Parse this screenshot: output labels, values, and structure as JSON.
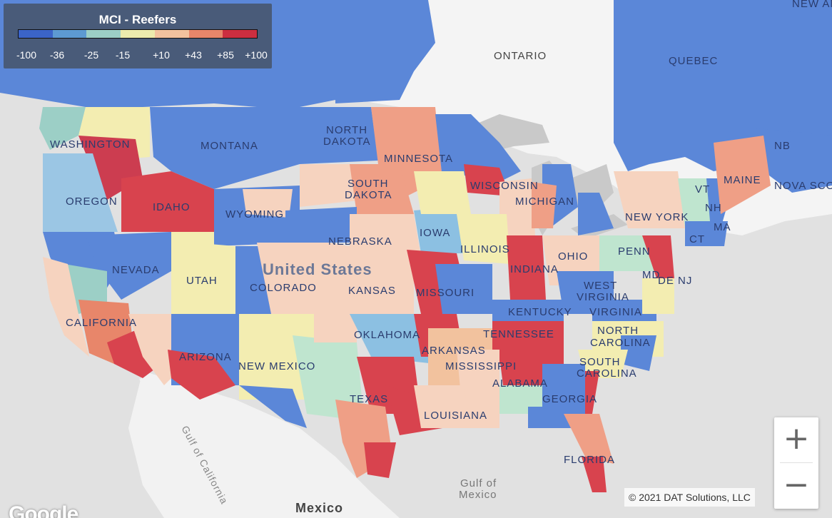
{
  "legend": {
    "title": "MCI - Reefers",
    "ticks": [
      "-100",
      "-36",
      "-25",
      "-15",
      "+10",
      "+43",
      "+85",
      "+100"
    ],
    "colors": [
      "#3b64c8",
      "#5d9ad2",
      "#9ccfc6",
      "#ecebad",
      "#f2c29e",
      "#e8866a",
      "#cc2e40"
    ]
  },
  "labels": {
    "ontario": "ONTARIO",
    "quebec": "QUEBEC",
    "nb": "NB",
    "nova_scotia": "NOVA SCO",
    "new_and": "NEW AND L",
    "north_dakota_1": "NORTH",
    "north_dakota_2": "DAKOTA",
    "south_dakota_1": "SOUTH",
    "south_dakota_2": "DAKOTA",
    "washington": "WASHINGTON",
    "montana": "MONTANA",
    "minnesota": "MINNESOTA",
    "wisconsin": "WISCONSIN",
    "michigan": "MICHIGAN",
    "oregon": "OREGON",
    "idaho": "IDAHO",
    "wyoming": "WYOMING",
    "iowa": "IOWA",
    "nebraska": "NEBRASKA",
    "illinois": "ILLINOIS",
    "indiana": "INDIANA",
    "ohio": "OHIO",
    "penn": "PENN",
    "new_york": "NEW YORK",
    "maine": "MAINE",
    "vt": "VT",
    "nh": "NH",
    "ct": "CT",
    "ma": "MA",
    "nj": "NJ",
    "de": "DE",
    "md": "MD",
    "nevada": "NEVADA",
    "utah": "UTAH",
    "colorado": "COLORADO",
    "united_states": "United States",
    "kansas": "KANSAS",
    "missouri": "MISSOURI",
    "west_virginia_1": "WEST",
    "west_virginia_2": "VIRGINIA",
    "virginia": "VIRGINIA",
    "kentucky": "KENTUCKY",
    "california": "CALIFORNIA",
    "oklahoma": "OKLAHOMA",
    "tennessee": "TENNESSEE",
    "north_carolina_1": "NORTH",
    "north_carolina_2": "CAROLINA",
    "south_carolina_1": "SOUTH",
    "south_carolina_2": "CAROLINA",
    "arkansas": "ARKANSAS",
    "arizona": "ARIZONA",
    "new_mexico": "NEW MEXICO",
    "mississippi": "MISSISSIPPI",
    "alabama": "ALABAMA",
    "georgia": "GEORGIA",
    "texas": "TEXAS",
    "louisiana": "LOUISIANA",
    "florida": "FLORIDA",
    "gulf_of_mexico_1": "Gulf of",
    "gulf_of_mexico_2": "Mexico",
    "gulf_of_california": "Gulf of California",
    "mexico": "Mexico"
  },
  "zoom": {
    "in_label": "+",
    "out_label": "−"
  },
  "attribution": {
    "copyright": "© 2021 DAT Solutions, LLC",
    "logo": "Google"
  }
}
